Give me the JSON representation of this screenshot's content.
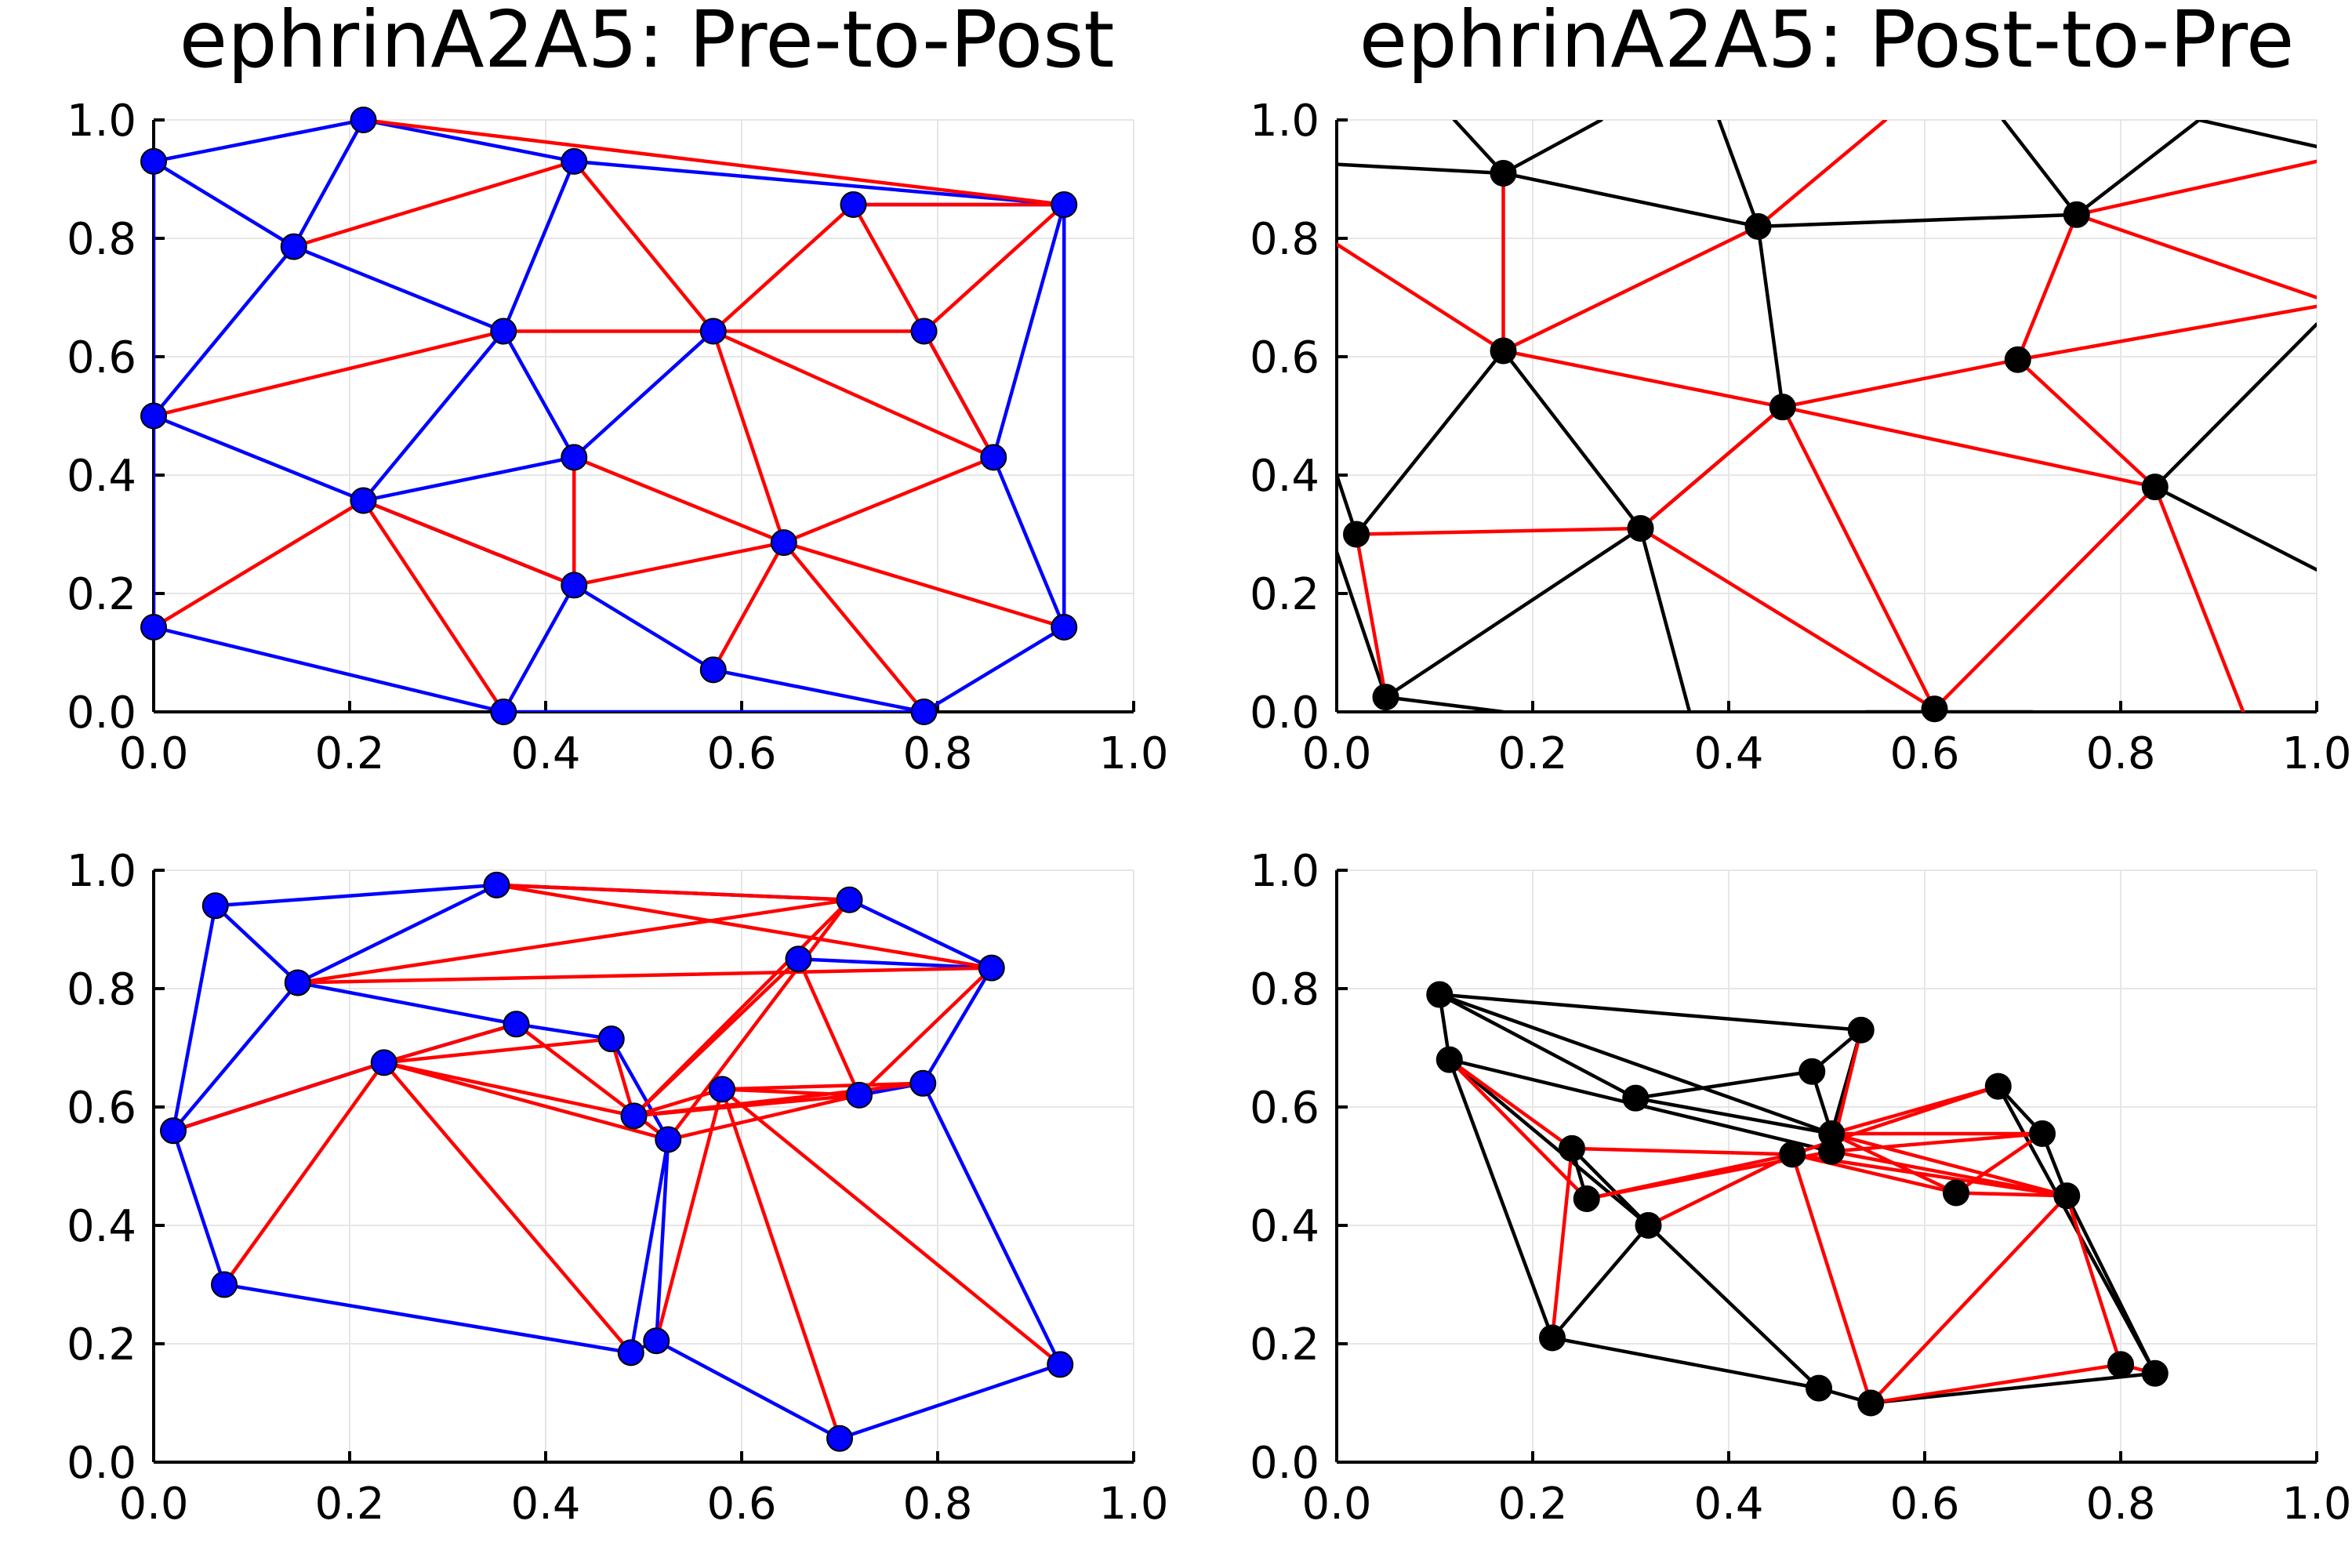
{
  "colors": {
    "blue": "#0000ff",
    "red": "#ff0000",
    "black": "#000000"
  },
  "chart_data": [
    {
      "type": "scatter",
      "title": "ephrinA2A5: Pre-to-Post",
      "xlim": [
        0,
        1
      ],
      "ylim": [
        0,
        1
      ],
      "xticks": [
        "0.0",
        "0.2",
        "0.4",
        "0.6",
        "0.8",
        "1.0"
      ],
      "yticks": [
        "0.0",
        "0.2",
        "0.4",
        "0.6",
        "0.8",
        "1.0"
      ],
      "grid": true,
      "point_color": "blue",
      "points": [
        [
          0.0,
          0.93
        ],
        [
          0.214,
          1.0
        ],
        [
          0.429,
          0.93
        ],
        [
          0.714,
          0.857
        ],
        [
          0.929,
          0.857
        ],
        [
          0.143,
          0.786
        ],
        [
          0.357,
          0.643
        ],
        [
          0.571,
          0.643
        ],
        [
          0.786,
          0.643
        ],
        [
          0.0,
          0.5
        ],
        [
          0.429,
          0.43
        ],
        [
          0.857,
          0.43
        ],
        [
          0.214,
          0.357
        ],
        [
          0.643,
          0.286
        ],
        [
          0.429,
          0.214
        ],
        [
          0.0,
          0.143
        ],
        [
          0.929,
          0.143
        ],
        [
          0.571,
          0.071
        ],
        [
          0.357,
          0.0
        ],
        [
          0.786,
          0.0
        ]
      ],
      "edges_blue": [
        [
          0,
          1
        ],
        [
          0,
          5
        ],
        [
          1,
          5
        ],
        [
          1,
          2
        ],
        [
          2,
          4
        ],
        [
          3,
          4
        ],
        [
          4,
          11
        ],
        [
          4,
          16
        ],
        [
          11,
          8
        ],
        [
          11,
          16
        ],
        [
          16,
          19
        ],
        [
          18,
          19
        ],
        [
          17,
          19
        ],
        [
          17,
          14
        ],
        [
          14,
          18
        ],
        [
          15,
          18
        ],
        [
          0,
          15
        ],
        [
          9,
          5
        ],
        [
          9,
          12
        ],
        [
          12,
          6
        ],
        [
          6,
          5
        ],
        [
          12,
          10
        ],
        [
          10,
          7
        ],
        [
          6,
          10
        ],
        [
          14,
          12
        ],
        [
          2,
          6
        ]
      ],
      "edges_red": [
        [
          1,
          4
        ],
        [
          5,
          2
        ],
        [
          2,
          7
        ],
        [
          7,
          3
        ],
        [
          3,
          8
        ],
        [
          8,
          4
        ],
        [
          3,
          4
        ],
        [
          6,
          7
        ],
        [
          7,
          8
        ],
        [
          9,
          6
        ],
        [
          7,
          11
        ],
        [
          7,
          13
        ],
        [
          8,
          11
        ],
        [
          11,
          13
        ],
        [
          10,
          14
        ],
        [
          14,
          13
        ],
        [
          10,
          13
        ],
        [
          12,
          14
        ],
        [
          12,
          15
        ],
        [
          12,
          18
        ],
        [
          13,
          16
        ],
        [
          13,
          17
        ],
        [
          13,
          19
        ]
      ]
    },
    {
      "type": "scatter",
      "title": "ephrinA2A5: Post-to-Pre",
      "xlim": [
        0,
        1
      ],
      "ylim": [
        0,
        1
      ],
      "xticks": [
        "0.0",
        "0.2",
        "0.4",
        "0.6",
        "0.8",
        "1.0"
      ],
      "yticks": [
        "0.0",
        "0.2",
        "0.4",
        "0.6",
        "0.8",
        "1.0"
      ],
      "grid": true,
      "point_color": "black",
      "points": [
        [
          0.17,
          0.91
        ],
        [
          0.43,
          0.82
        ],
        [
          0.755,
          0.84
        ],
        [
          0.17,
          0.61
        ],
        [
          0.455,
          0.515
        ],
        [
          0.695,
          0.595
        ],
        [
          0.835,
          0.38
        ],
        [
          0.02,
          0.3
        ],
        [
          0.31,
          0.31
        ],
        [
          0.05,
          0.025
        ],
        [
          0.61,
          0.005
        ]
      ],
      "edges_black": [
        [
          0,
          1
        ],
        [
          1,
          2
        ],
        [
          1,
          4
        ],
        [
          3,
          7
        ],
        [
          3,
          8
        ],
        [
          8,
          9
        ],
        [
          4,
          8
        ]
      ],
      "edges_black_open": [
        [
          [
            0.0,
            0.925
          ],
          [
            0.17,
            0.91
          ]
        ],
        [
          [
            0.12,
            1.0
          ],
          [
            0.17,
            0.91
          ]
        ],
        [
          [
            0.17,
            0.91
          ],
          [
            0.27,
            1.0
          ]
        ],
        [
          [
            0.39,
            1.0
          ],
          [
            0.43,
            0.82
          ]
        ],
        [
          [
            0.68,
            1.0
          ],
          [
            0.755,
            0.84
          ]
        ],
        [
          [
            0.755,
            0.84
          ],
          [
            0.88,
            1.0
          ]
        ],
        [
          [
            0.88,
            1.0
          ],
          [
            1.0,
            0.955
          ]
        ],
        [
          [
            0.835,
            0.38
          ],
          [
            1.0,
            0.655
          ]
        ],
        [
          [
            0.835,
            0.38
          ],
          [
            1.0,
            0.24
          ]
        ],
        [
          [
            0.0,
            0.4
          ],
          [
            0.02,
            0.3
          ]
        ],
        [
          [
            0.0,
            0.27
          ],
          [
            0.05,
            0.025
          ]
        ],
        [
          [
            0.05,
            0.025
          ],
          [
            0.17,
            0.0
          ]
        ],
        [
          [
            0.31,
            0.31
          ],
          [
            0.36,
            0.0
          ]
        ],
        [
          [
            0.54,
            0.0
          ],
          [
            0.71,
            0.0
          ]
        ]
      ],
      "edges_red": [
        [
          0,
          3
        ],
        [
          3,
          1
        ],
        [
          3,
          4
        ],
        [
          4,
          5
        ],
        [
          7,
          8
        ],
        [
          8,
          4
        ],
        [
          4,
          10
        ],
        [
          8,
          10
        ],
        [
          10,
          6
        ],
        [
          5,
          6
        ],
        [
          2,
          5
        ],
        [
          4,
          6
        ]
      ],
      "edges_red_open": [
        [
          [
            0.0,
            0.79
          ],
          [
            0.17,
            0.61
          ]
        ],
        [
          [
            0.43,
            0.82
          ],
          [
            0.56,
            1.0
          ]
        ],
        [
          [
            0.755,
            0.84
          ],
          [
            1.0,
            0.7
          ]
        ],
        [
          [
            0.695,
            0.595
          ],
          [
            1.0,
            0.685
          ]
        ],
        [
          [
            0.755,
            0.84
          ],
          [
            1.0,
            0.93
          ]
        ],
        [
          [
            0.835,
            0.38
          ],
          [
            0.925,
            0.0
          ]
        ],
        [
          [
            0.02,
            0.3
          ],
          [
            0.05,
            0.025
          ]
        ]
      ]
    },
    {
      "type": "scatter",
      "xlim": [
        0,
        1
      ],
      "ylim": [
        0,
        1
      ],
      "xticks": [
        "0.0",
        "0.2",
        "0.4",
        "0.6",
        "0.8",
        "1.0"
      ],
      "yticks": [
        "0.0",
        "0.2",
        "0.4",
        "0.6",
        "0.8",
        "1.0"
      ],
      "grid": true,
      "point_color": "blue",
      "points": [
        [
          0.063,
          0.94
        ],
        [
          0.35,
          0.975
        ],
        [
          0.71,
          0.95
        ],
        [
          0.147,
          0.81
        ],
        [
          0.658,
          0.85
        ],
        [
          0.855,
          0.835
        ],
        [
          0.37,
          0.74
        ],
        [
          0.467,
          0.715
        ],
        [
          0.235,
          0.675
        ],
        [
          0.49,
          0.585
        ],
        [
          0.525,
          0.545
        ],
        [
          0.58,
          0.63
        ],
        [
          0.72,
          0.62
        ],
        [
          0.785,
          0.64
        ],
        [
          0.02,
          0.56
        ],
        [
          0.072,
          0.3
        ],
        [
          0.487,
          0.185
        ],
        [
          0.513,
          0.205
        ],
        [
          0.7,
          0.04
        ],
        [
          0.925,
          0.165
        ]
      ],
      "edges_blue": [
        [
          0,
          1
        ],
        [
          1,
          2
        ],
        [
          2,
          5
        ],
        [
          4,
          5
        ],
        [
          5,
          13
        ],
        [
          13,
          12
        ],
        [
          13,
          19
        ],
        [
          19,
          18
        ],
        [
          18,
          17
        ],
        [
          16,
          17
        ],
        [
          15,
          16
        ],
        [
          14,
          15
        ],
        [
          0,
          14
        ],
        [
          0,
          3
        ],
        [
          3,
          1
        ],
        [
          14,
          3
        ],
        [
          3,
          6
        ],
        [
          6,
          8
        ],
        [
          8,
          14
        ],
        [
          6,
          7
        ],
        [
          7,
          10
        ],
        [
          10,
          16
        ],
        [
          10,
          17
        ],
        [
          14,
          8
        ]
      ],
      "edges_red": [
        [
          3,
          2
        ],
        [
          3,
          5
        ],
        [
          1,
          2
        ],
        [
          1,
          5
        ],
        [
          2,
          9
        ],
        [
          2,
          10
        ],
        [
          4,
          9
        ],
        [
          4,
          12
        ],
        [
          5,
          12
        ],
        [
          8,
          6
        ],
        [
          8,
          7
        ],
        [
          8,
          9
        ],
        [
          8,
          10
        ],
        [
          8,
          16
        ],
        [
          6,
          10
        ],
        [
          7,
          9
        ],
        [
          9,
          11
        ],
        [
          9,
          12
        ],
        [
          10,
          12
        ],
        [
          11,
          12
        ],
        [
          11,
          13
        ],
        [
          9,
          13
        ],
        [
          11,
          17
        ],
        [
          11,
          18
        ],
        [
          11,
          19
        ],
        [
          15,
          8
        ],
        [
          14,
          8
        ]
      ]
    },
    {
      "type": "scatter",
      "xlim": [
        0,
        1
      ],
      "ylim": [
        0,
        1
      ],
      "xticks": [
        "0.0",
        "0.2",
        "0.4",
        "0.6",
        "0.8",
        "1.0"
      ],
      "yticks": [
        "0.0",
        "0.2",
        "0.4",
        "0.6",
        "0.8",
        "1.0"
      ],
      "grid": true,
      "point_color": "black",
      "points": [
        [
          0.105,
          0.79
        ],
        [
          0.115,
          0.68
        ],
        [
          0.305,
          0.615
        ],
        [
          0.535,
          0.73
        ],
        [
          0.485,
          0.66
        ],
        [
          0.675,
          0.635
        ],
        [
          0.505,
          0.555
        ],
        [
          0.505,
          0.525
        ],
        [
          0.465,
          0.52
        ],
        [
          0.72,
          0.555
        ],
        [
          0.24,
          0.53
        ],
        [
          0.255,
          0.445
        ],
        [
          0.318,
          0.4
        ],
        [
          0.632,
          0.455
        ],
        [
          0.745,
          0.45
        ],
        [
          0.22,
          0.21
        ],
        [
          0.492,
          0.125
        ],
        [
          0.545,
          0.1
        ],
        [
          0.8,
          0.165
        ],
        [
          0.835,
          0.15
        ]
      ],
      "edges_black": [
        [
          0,
          1
        ],
        [
          0,
          2
        ],
        [
          0,
          3
        ],
        [
          0,
          6
        ],
        [
          1,
          12
        ],
        [
          1,
          15
        ],
        [
          1,
          7
        ],
        [
          2,
          4
        ],
        [
          3,
          4
        ],
        [
          4,
          6
        ],
        [
          2,
          6
        ],
        [
          3,
          6
        ],
        [
          5,
          9
        ],
        [
          9,
          14
        ],
        [
          14,
          19
        ],
        [
          5,
          19
        ],
        [
          12,
          10
        ],
        [
          12,
          15
        ],
        [
          12,
          16
        ],
        [
          15,
          16
        ],
        [
          16,
          17
        ],
        [
          17,
          19
        ],
        [
          11,
          10
        ]
      ],
      "edges_red": [
        [
          1,
          10
        ],
        [
          10,
          15
        ],
        [
          1,
          11
        ],
        [
          11,
          8
        ],
        [
          10,
          8
        ],
        [
          12,
          8
        ],
        [
          11,
          7
        ],
        [
          8,
          13
        ],
        [
          6,
          13
        ],
        [
          7,
          14
        ],
        [
          6,
          9
        ],
        [
          6,
          5
        ],
        [
          5,
          8
        ],
        [
          3,
          7
        ],
        [
          8,
          17
        ],
        [
          7,
          9
        ],
        [
          9,
          13
        ],
        [
          13,
          14
        ],
        [
          14,
          17
        ],
        [
          14,
          18
        ],
        [
          17,
          18
        ],
        [
          18,
          19
        ],
        [
          6,
          14
        ],
        [
          8,
          14
        ]
      ]
    }
  ]
}
